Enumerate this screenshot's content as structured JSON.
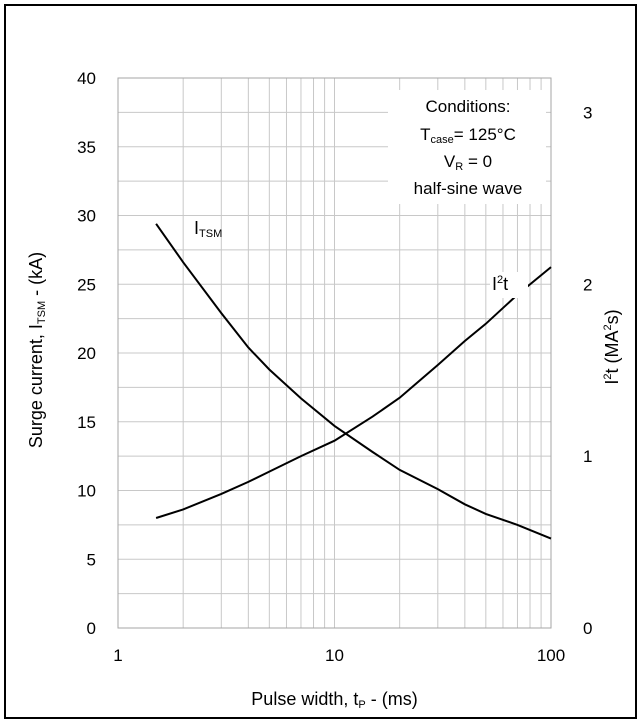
{
  "chart_data": {
    "type": "line",
    "xlabel": "Pulse width, t",
    "xlabel_sub": "P",
    "xlabel_suffix": " - (ms)",
    "ylabel": "Surge current, I",
    "ylabel_sub": "TSM",
    "ylabel_suffix": " -  (kA)",
    "y2label_pre": "I",
    "y2label_sup": "2",
    "y2label_mid": "t (MA",
    "y2label_sup2": "2",
    "y2label_end": "s)",
    "x_scale": "log",
    "xlim": [
      1,
      100
    ],
    "ylim": [
      0,
      40
    ],
    "y2lim": [
      0,
      3.2
    ],
    "x_ticks": [
      "1",
      "10",
      "100"
    ],
    "y_ticks": [
      "0",
      "5",
      "10",
      "15",
      "20",
      "25",
      "30",
      "35",
      "40"
    ],
    "y2_ticks": [
      "0",
      "1",
      "2",
      "3"
    ],
    "grid": true,
    "series": [
      {
        "name": "I",
        "name_sub": "TSM",
        "axis": "left",
        "color": "#000000",
        "x": [
          1.5,
          2,
          3,
          4,
          5,
          7,
          10,
          15,
          20,
          30,
          40,
          50,
          70,
          100
        ],
        "y": [
          29.4,
          26.6,
          22.9,
          20.4,
          18.8,
          16.7,
          14.7,
          12.8,
          11.5,
          10.1,
          9.0,
          8.3,
          7.5,
          6.5
        ]
      },
      {
        "name": "I",
        "name_sup": "2",
        "name_end": "t",
        "axis": "right",
        "color": "#000000",
        "x": [
          1.5,
          2,
          3,
          4,
          5,
          7,
          10,
          15,
          20,
          30,
          40,
          50,
          70,
          100
        ],
        "y": [
          0.64,
          0.69,
          0.78,
          0.85,
          0.91,
          1.0,
          1.09,
          1.23,
          1.34,
          1.53,
          1.67,
          1.77,
          1.94,
          2.1
        ]
      }
    ],
    "conditions": {
      "title": "Conditions:",
      "temp_pre": "T",
      "temp_sub": "case",
      "temp_value": "= 125°C",
      "vr_pre": "V",
      "vr_sub": "R",
      "vr_value": " = 0",
      "wave": "half-sine wave"
    }
  }
}
